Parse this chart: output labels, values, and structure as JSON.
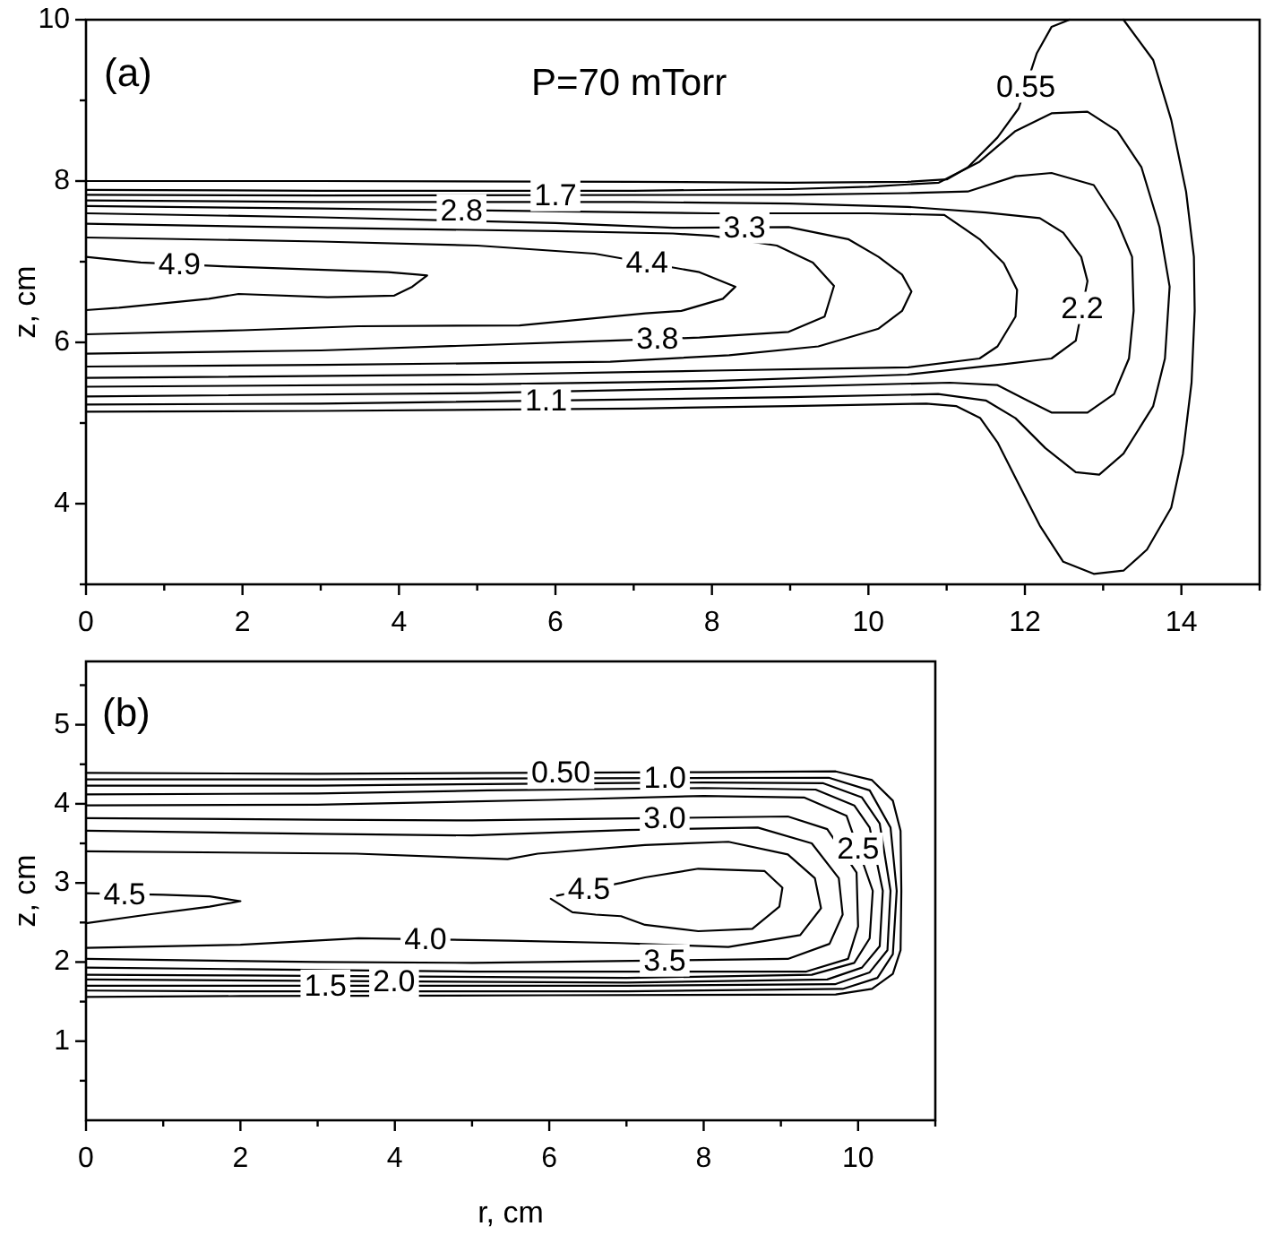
{
  "chart_data": [
    {
      "type": "line",
      "ylabel": "z, cm",
      "annotations": [
        "(a)",
        "P=70 mTorr"
      ],
      "xlim": [
        0,
        15
      ],
      "ylim": [
        3,
        10
      ],
      "xticks": [
        0,
        {
          "value": 1,
          "label": null
        },
        2,
        {
          "value": 3,
          "label": null
        },
        4,
        {
          "value": 5,
          "label": null
        },
        6,
        {
          "value": 7,
          "label": null
        },
        8,
        {
          "value": 9,
          "label": null
        },
        10,
        {
          "value": 11,
          "label": null
        },
        12,
        {
          "value": 13,
          "label": null
        },
        14,
        {
          "value": 15,
          "label": null
        }
      ],
      "yticks": [
        {
          "value": 3,
          "label": null
        },
        4,
        {
          "value": 5,
          "label": null
        },
        6,
        {
          "value": 7,
          "label": null
        },
        8,
        {
          "value": 9,
          "label": null
        },
        10
      ],
      "series": [
        {
          "name": "0.55",
          "color": "#000000",
          "x": [
            0,
            3,
            7,
            9,
            10.5,
            11.0,
            11.27,
            11.65,
            11.92,
            12.15,
            12.34,
            12.57,
            null,
            13.26,
            13.64,
            13.87,
            14.06,
            14.16,
            14.17,
            14.13,
            14.02,
            13.87,
            13.56,
            13.26,
            12.88,
            12.49,
            12.19,
            11.88,
            11.65,
            11.43,
            11.12,
            10.74,
            9,
            7,
            3,
            0
          ],
          "values": [
            8.0,
            8.0,
            7.99,
            7.98,
            7.99,
            8.02,
            8.17,
            8.54,
            8.9,
            9.58,
            9.91,
            10.0,
            null,
            10.0,
            9.5,
            8.76,
            7.87,
            7.06,
            6.39,
            5.5,
            4.62,
            3.95,
            3.43,
            3.17,
            3.13,
            3.28,
            3.73,
            4.32,
            4.76,
            5.06,
            5.21,
            5.24,
            5.21,
            5.18,
            5.15,
            5.14
          ]
        },
        {
          "name": "1.1",
          "color": "#000000",
          "x": [
            0,
            3,
            7,
            9,
            10.0,
            10.9,
            11.42,
            11.88,
            12.34,
            12.8,
            13.18,
            13.49,
            13.72,
            13.85,
            13.79,
            13.64,
            13.26,
            12.95,
            12.65,
            12.26,
            11.88,
            11.5,
            10.89,
            9,
            3,
            0
          ],
          "values": [
            7.89,
            7.88,
            7.88,
            7.9,
            7.93,
            7.98,
            8.24,
            8.62,
            8.84,
            8.86,
            8.62,
            8.17,
            7.43,
            6.69,
            5.8,
            5.21,
            4.62,
            4.36,
            4.39,
            4.69,
            5.06,
            5.28,
            5.36,
            5.32,
            5.24,
            5.23
          ]
        },
        {
          "name": "1.7",
          "color": "#000000",
          "x": [
            0,
            3,
            9,
            10.5,
            11.27,
            11.88,
            12.34,
            12.88,
            13.18,
            13.37,
            13.39,
            13.33,
            13.14,
            12.8,
            12.34,
            12.03,
            11.65,
            11.04,
            8,
            5,
            0
          ],
          "values": [
            7.83,
            7.82,
            7.83,
            7.85,
            7.87,
            8.06,
            8.1,
            7.95,
            7.5,
            7.06,
            6.39,
            5.8,
            5.36,
            5.13,
            5.13,
            5.28,
            5.47,
            5.5,
            5.43,
            5.37,
            5.33
          ]
        },
        {
          "name": "2.2",
          "color": "#000000",
          "x": [
            0,
            3,
            7,
            9,
            10.5,
            11.5,
            12.19,
            12.49,
            12.72,
            12.8,
            12.65,
            12.34,
            11.73,
            10.5,
            8,
            5,
            0
          ],
          "values": [
            7.76,
            7.74,
            7.74,
            7.72,
            7.68,
            7.61,
            7.54,
            7.36,
            7.06,
            6.76,
            6.02,
            5.8,
            5.73,
            5.6,
            5.52,
            5.48,
            5.45
          ]
        },
        {
          "name": "2.8",
          "color": "#000000",
          "x": [
            0,
            3,
            8,
            10.0,
            10.97,
            11.42,
            11.73,
            11.9,
            11.88,
            11.65,
            11.42,
            10.51,
            8,
            5,
            0
          ],
          "values": [
            7.69,
            7.66,
            7.6,
            7.6,
            7.58,
            7.28,
            6.98,
            6.65,
            6.32,
            5.95,
            5.8,
            5.69,
            5.65,
            5.6,
            5.56
          ]
        },
        {
          "name": "3.3",
          "color": "#000000",
          "x": [
            0,
            3,
            6,
            7.5,
            8.98,
            9.74,
            10.13,
            10.43,
            10.55,
            10.43,
            10.13,
            9.36,
            8.22,
            6.7,
            3,
            0
          ],
          "values": [
            7.6,
            7.55,
            7.48,
            7.42,
            7.43,
            7.28,
            7.06,
            6.84,
            6.63,
            6.39,
            6.17,
            5.95,
            5.84,
            5.76,
            5.72,
            5.7
          ]
        },
        {
          "name": "3.8",
          "color": "#000000",
          "x": [
            0,
            3,
            6,
            7.5,
            8.0,
            8.83,
            9.29,
            9.56,
            9.44,
            8.98,
            7.84,
            6.7,
            3,
            0
          ],
          "values": [
            7.47,
            7.42,
            7.38,
            7.35,
            7.32,
            7.2,
            6.99,
            6.7,
            6.32,
            6.13,
            6.06,
            6.02,
            5.9,
            5.86
          ]
        },
        {
          "name": "4.4",
          "color": "#000000",
          "x": [
            0,
            3,
            5,
            6.5,
            7.84,
            8.3,
            8.14,
            7.61,
            7.15,
            5.54,
            3.48,
            2,
            0
          ],
          "values": [
            7.3,
            7.25,
            7.2,
            7.1,
            6.87,
            6.69,
            6.54,
            6.39,
            6.36,
            6.21,
            6.2,
            6.15,
            6.1
          ]
        },
        {
          "name": "4.9",
          "color": "#000000",
          "x": [
            0,
            0.7,
            1.8,
            2.72,
            3.86,
            4.24,
            4.36,
            4.17,
            3.94,
            3.09,
            1.95,
            1.57,
            0.42,
            0
          ],
          "values": [
            7.06,
            6.99,
            6.94,
            6.91,
            6.87,
            6.84,
            6.83,
            6.69,
            6.58,
            6.56,
            6.6,
            6.54,
            6.43,
            6.4
          ]
        }
      ]
    },
    {
      "type": "line",
      "xlabel": "r, cm",
      "ylabel": "z, cm",
      "annotations": [
        "(b)"
      ],
      "xlim": [
        0,
        11
      ],
      "ylim": [
        0,
        5.8
      ],
      "xticks": [
        0,
        {
          "value": 1,
          "label": null
        },
        2,
        {
          "value": 3,
          "label": null
        },
        4,
        {
          "value": 5,
          "label": null
        },
        6,
        {
          "value": 7,
          "label": null
        },
        8,
        {
          "value": 9,
          "label": null
        },
        10,
        {
          "value": 11,
          "label": null
        }
      ],
      "yticks": [
        {
          "value": 0.5,
          "label": null
        },
        1,
        {
          "value": 1.5,
          "label": null
        },
        2,
        {
          "value": 2.5,
          "label": null
        },
        3,
        {
          "value": 3.5,
          "label": null
        },
        4,
        {
          "value": 4.5,
          "label": null
        },
        5,
        {
          "value": 5.5,
          "label": null
        }
      ],
      "series": [
        {
          "name": "0.50",
          "color": "#000000",
          "x": [
            0,
            3,
            8,
            9.71,
            10.18,
            10.45,
            10.55,
            10.56,
            10.55,
            10.45,
            10.18,
            9.71,
            6,
            2,
            0
          ],
          "values": [
            4.39,
            4.38,
            4.4,
            4.41,
            4.3,
            4.04,
            3.66,
            2.9,
            2.15,
            1.85,
            1.66,
            1.59,
            1.58,
            1.57,
            1.56
          ]
        },
        {
          "name": "1.0",
          "color": "#000000",
          "x": [
            0,
            3,
            5.2,
            9.62,
            10.15,
            10.42,
            10.5,
            10.45,
            10.25,
            9.8,
            7,
            2,
            0
          ],
          "values": [
            4.31,
            4.31,
            4.32,
            4.33,
            4.17,
            3.7,
            2.9,
            2.1,
            1.8,
            1.66,
            1.63,
            1.63,
            1.64
          ]
        },
        {
          "name": "1.5",
          "color": "#000000",
          "x": [
            0,
            3,
            5.2,
            8,
            9.55,
            10.05,
            10.28,
            10.42,
            10.38,
            10.15,
            9.7,
            7,
            0
          ],
          "values": [
            4.23,
            4.23,
            4.25,
            4.27,
            4.26,
            4.08,
            3.75,
            2.9,
            2.15,
            1.87,
            1.72,
            1.7,
            1.7
          ]
        },
        {
          "name": "2.0",
          "color": "#000000",
          "x": [
            0,
            3,
            5.2,
            8,
            9.45,
            9.95,
            10.15,
            10.32,
            10.28,
            10.05,
            9.6,
            7,
            0
          ],
          "values": [
            4.12,
            4.13,
            4.17,
            4.2,
            4.18,
            3.98,
            3.7,
            2.9,
            2.2,
            1.93,
            1.78,
            1.74,
            1.78
          ]
        },
        {
          "name": "2.5",
          "color": "#000000",
          "x": [
            0,
            3,
            6,
            8,
            9.3,
            9.85,
            10.19,
            10.15,
            9.95,
            9.4,
            7,
            2,
            0
          ],
          "values": [
            3.98,
            3.99,
            4.05,
            4.1,
            4.08,
            3.85,
            2.9,
            2.3,
            1.99,
            1.84,
            1.8,
            1.83,
            1.84
          ]
        },
        {
          "name": "3.0",
          "color": "#000000",
          "x": [
            0,
            3,
            5,
            9.09,
            9.6,
            9.98,
            10.0,
            9.87,
            9.33,
            5,
            2,
            0
          ],
          "values": [
            3.82,
            3.8,
            3.79,
            3.84,
            3.68,
            3.13,
            2.45,
            2.04,
            1.88,
            1.88,
            1.91,
            1.93
          ]
        },
        {
          "name": "3.5",
          "color": "#000000",
          "x": [
            0,
            3,
            5,
            7,
            8.7,
            9.4,
            9.75,
            9.8,
            9.63,
            9.09,
            5,
            3,
            0
          ],
          "values": [
            3.66,
            3.62,
            3.6,
            3.67,
            3.7,
            3.5,
            3.06,
            2.6,
            2.23,
            2.04,
            1.99,
            2.0,
            2.04
          ]
        },
        {
          "name": "4.0",
          "color": "#000000",
          "x": [
            0,
            3.5,
            5.46,
            5.85,
            7.24,
            8.32,
            9.09,
            9.44,
            9.52,
            9.25,
            8.32,
            6.9,
            5.5,
            3.53,
            2,
            0
          ],
          "values": [
            3.4,
            3.37,
            3.3,
            3.37,
            3.48,
            3.52,
            3.36,
            3.06,
            2.68,
            2.34,
            2.19,
            2.24,
            2.27,
            2.3,
            2.22,
            2.18
          ]
        },
        {
          "name": "4.5",
          "color": "#000000",
          "x": [
            0,
            1.0,
            1.6,
            2.0,
            1.6,
            0.8,
            0
          ],
          "values": [
            2.87,
            2.85,
            2.83,
            2.77,
            2.7,
            2.6,
            2.49
          ]
        },
        {
          "name": "4.5",
          "color": "#000000",
          "x": [
            6.1,
            6.93,
            7.24,
            7.93,
            8.79,
            9.02,
            8.98,
            8.63,
            7.93,
            7.24,
            6.93,
            6.6,
            6.3,
            6.02
          ],
          "values": [
            2.84,
            3.0,
            3.07,
            3.18,
            3.15,
            2.94,
            2.7,
            2.42,
            2.39,
            2.47,
            2.58,
            2.6,
            2.63,
            2.8
          ]
        }
      ]
    }
  ]
}
